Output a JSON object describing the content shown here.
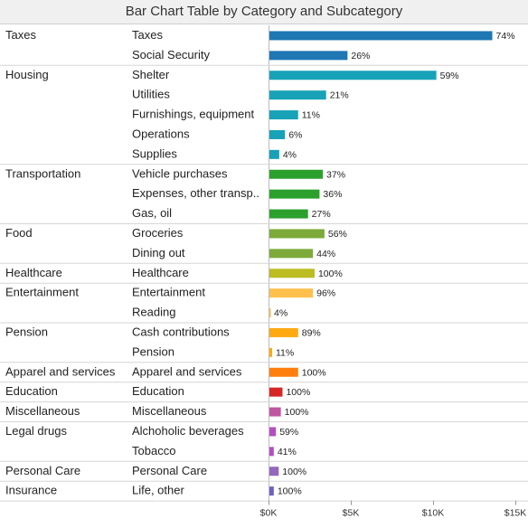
{
  "chart_data": {
    "type": "bar",
    "title": "Bar Chart Table by Category and Subcategory",
    "xlabel": "",
    "ylabel": "",
    "xlim": [
      0,
      15000
    ],
    "x_ticks": [
      "$0K",
      "$5K",
      "$10K",
      "$15K"
    ],
    "x_tick_values": [
      0,
      5000,
      10000,
      15000
    ],
    "grid": false,
    "legend": "none",
    "groups": [
      {
        "category": "Taxes",
        "color": "#1f77b4",
        "rows": [
          {
            "subcategory": "Taxes",
            "value": 13600,
            "label": "74%"
          },
          {
            "subcategory": "Social Security",
            "value": 4800,
            "label": "26%"
          }
        ]
      },
      {
        "category": "Housing",
        "color": "#17a2b8",
        "rows": [
          {
            "subcategory": "Shelter",
            "value": 10200,
            "label": "59%"
          },
          {
            "subcategory": "Utilities",
            "value": 3500,
            "label": "21%"
          },
          {
            "subcategory": "Furnishings, equipment",
            "value": 1800,
            "label": "11%"
          },
          {
            "subcategory": "Operations",
            "value": 1000,
            "label": "6%"
          },
          {
            "subcategory": "Supplies",
            "value": 650,
            "label": "4%"
          }
        ]
      },
      {
        "category": "Transportation",
        "color": "#2ca02c",
        "rows": [
          {
            "subcategory": "Vehicle purchases",
            "value": 3300,
            "label": "37%"
          },
          {
            "subcategory": "Expenses, other transp..",
            "value": 3100,
            "label": "36%"
          },
          {
            "subcategory": "Gas, oil",
            "value": 2400,
            "label": "27%"
          }
        ]
      },
      {
        "category": "Food",
        "color": "#7daa3a",
        "rows": [
          {
            "subcategory": "Groceries",
            "value": 3400,
            "label": "56%"
          },
          {
            "subcategory": "Dining out",
            "value": 2700,
            "label": "44%"
          }
        ]
      },
      {
        "category": "Healthcare",
        "color": "#bcbd22",
        "rows": [
          {
            "subcategory": "Healthcare",
            "value": 2800,
            "label": "100%"
          }
        ]
      },
      {
        "category": "Entertainment",
        "color": "#ffc04d",
        "rows": [
          {
            "subcategory": "Entertainment",
            "value": 2700,
            "label": "96%"
          },
          {
            "subcategory": "Reading",
            "value": 110,
            "label": "4%"
          }
        ]
      },
      {
        "category": "Pension",
        "color": "#ffaa11",
        "rows": [
          {
            "subcategory": "Cash contributions",
            "value": 1800,
            "label": "89%"
          },
          {
            "subcategory": "Pension",
            "value": 220,
            "label": "11%"
          }
        ]
      },
      {
        "category": "Apparel and services",
        "color": "#ff7f0e",
        "rows": [
          {
            "subcategory": "Apparel and services",
            "value": 1800,
            "label": "100%"
          }
        ]
      },
      {
        "category": "Education",
        "color": "#d62728",
        "rows": [
          {
            "subcategory": "Education",
            "value": 850,
            "label": "100%"
          }
        ]
      },
      {
        "category": "Miscellaneous",
        "color": "#c0569f",
        "rows": [
          {
            "subcategory": "Miscellaneous",
            "value": 750,
            "label": "100%"
          }
        ]
      },
      {
        "category": "Legal drugs",
        "color": "#b44fc0",
        "rows": [
          {
            "subcategory": "Alchoholic beverages",
            "value": 450,
            "label": "59%"
          },
          {
            "subcategory": "Tobacco",
            "value": 320,
            "label": "41%"
          }
        ]
      },
      {
        "category": "Personal Care",
        "color": "#9467bd",
        "rows": [
          {
            "subcategory": "Personal Care",
            "value": 620,
            "label": "100%"
          }
        ]
      },
      {
        "category": "Insurance",
        "color": "#7060c0",
        "rows": [
          {
            "subcategory": "Life, other",
            "value": 320,
            "label": "100%"
          }
        ]
      }
    ]
  }
}
